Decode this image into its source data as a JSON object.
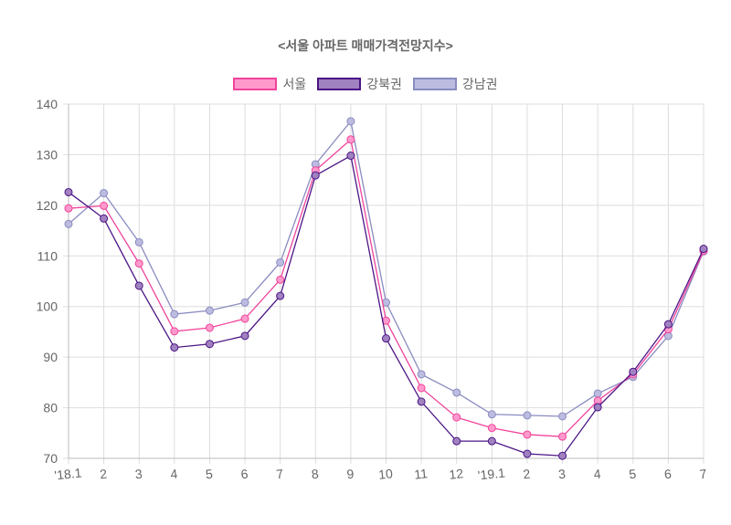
{
  "chart_data": {
    "type": "line",
    "title": "<서울 아파트 매매가격전망지수>",
    "categories": [
      "'18.1",
      "2",
      "3",
      "4",
      "5",
      "6",
      "7",
      "8",
      "9",
      "10",
      "11",
      "12",
      "'19.1",
      "2",
      "3",
      "4",
      "5",
      "6",
      "7"
    ],
    "ylim": [
      70,
      140
    ],
    "yticks": [
      70,
      80,
      90,
      100,
      110,
      120,
      130,
      140
    ],
    "grid": true,
    "legend": "top",
    "series": [
      {
        "name": "서울",
        "line": "#f0449c",
        "fill": "#ff99cc",
        "values": [
          119.4,
          119.9,
          108.5,
          95.1,
          95.8,
          97.6,
          105.3,
          126.9,
          133.0,
          97.2,
          83.9,
          78.1,
          76.0,
          74.7,
          74.3,
          81.4,
          86.6,
          95.5,
          111.0
        ]
      },
      {
        "name": "강북권",
        "line": "#4b1585",
        "fill": "#a082c0",
        "values": [
          122.6,
          117.4,
          104.1,
          91.9,
          92.6,
          94.2,
          102.1,
          125.9,
          129.8,
          93.7,
          81.2,
          73.4,
          73.4,
          70.9,
          70.5,
          80.1,
          87.1,
          96.5,
          111.4
        ]
      },
      {
        "name": "강남권",
        "line": "#8a8cc0",
        "fill": "#bcbce0",
        "values": [
          116.3,
          122.4,
          112.7,
          98.5,
          99.2,
          100.8,
          108.7,
          128.1,
          136.6,
          100.8,
          86.6,
          83.0,
          78.7,
          78.5,
          78.3,
          82.8,
          86.1,
          94.2,
          110.9
        ]
      }
    ]
  }
}
